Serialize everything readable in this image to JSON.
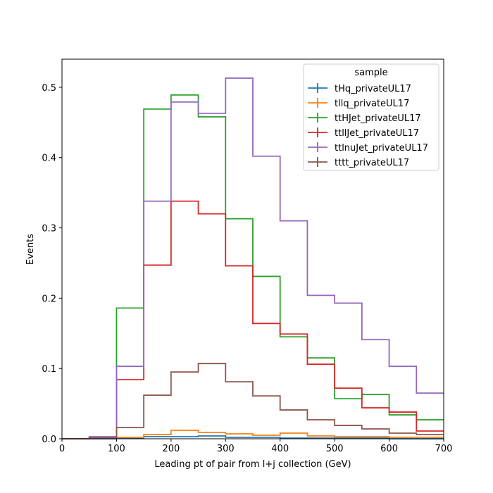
{
  "chart_data": {
    "type": "line",
    "style": "step-histogram",
    "xlabel": "Leading pt of pair from l+j collection (GeV)",
    "ylabel": "Events",
    "xlim": [
      0,
      700
    ],
    "ylim": [
      0,
      0.54
    ],
    "x_ticks": [
      0,
      100,
      200,
      300,
      400,
      500,
      600,
      700
    ],
    "y_ticks": [
      0.0,
      0.1,
      0.2,
      0.3,
      0.4,
      0.5
    ],
    "bin_edges": [
      0,
      50,
      100,
      150,
      200,
      250,
      300,
      350,
      400,
      450,
      500,
      550,
      600,
      650,
      700
    ],
    "legend_title": "sample",
    "legend_position": "top-right",
    "grid": false,
    "series": [
      {
        "name": "tHq_privateUL17",
        "color": "#1f77b4",
        "values": [
          0.0,
          0.0,
          0.001,
          0.003,
          0.003,
          0.004,
          0.002,
          0.002,
          0.001,
          0.001,
          0.001,
          0.001,
          0.0,
          0.0
        ]
      },
      {
        "name": "tllq_privateUL17",
        "color": "#ff7f0e",
        "values": [
          0.0,
          0.001,
          0.002,
          0.006,
          0.012,
          0.009,
          0.007,
          0.005,
          0.008,
          0.004,
          0.003,
          0.003,
          0.002,
          0.002
        ]
      },
      {
        "name": "ttHJet_privateUL17",
        "color": "#2ca02c",
        "values": [
          0.0,
          0.002,
          0.186,
          0.469,
          0.489,
          0.458,
          0.313,
          0.231,
          0.145,
          0.115,
          0.057,
          0.063,
          0.034,
          0.027
        ]
      },
      {
        "name": "ttllJet_privateUL17",
        "color": "#d62728",
        "values": [
          0.0,
          0.001,
          0.084,
          0.247,
          0.338,
          0.32,
          0.246,
          0.164,
          0.149,
          0.106,
          0.072,
          0.044,
          0.038,
          0.011
        ]
      },
      {
        "name": "ttlnuJet_privateUL17",
        "color": "#9467bd",
        "values": [
          0.0,
          0.003,
          0.103,
          0.338,
          0.479,
          0.463,
          0.513,
          0.402,
          0.31,
          0.204,
          0.193,
          0.141,
          0.103,
          0.065
        ]
      },
      {
        "name": "tttt_privateUL17",
        "color": "#8c564b",
        "values": [
          0.0,
          0.001,
          0.016,
          0.062,
          0.095,
          0.107,
          0.081,
          0.061,
          0.041,
          0.027,
          0.019,
          0.014,
          0.008,
          0.006
        ]
      }
    ]
  }
}
